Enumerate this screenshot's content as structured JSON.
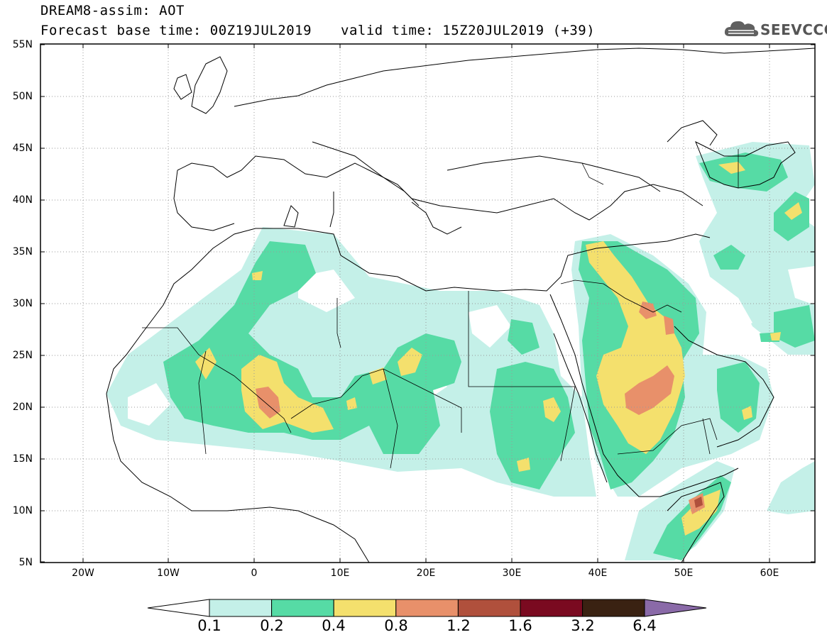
{
  "header": {
    "title": "DREAM8-assim: AOT",
    "base_time": "Forecast base time: 00Z19JUL2019",
    "valid_time": "valid time: 15Z20JUL2019 (+39)"
  },
  "logo": {
    "text": "SEEVCCC",
    "icon": "cloud-icon"
  },
  "map": {
    "lat_labels": [
      "55N",
      "50N",
      "45N",
      "40N",
      "35N",
      "30N",
      "25N",
      "20N",
      "15N",
      "10N",
      "5N"
    ],
    "lon_labels": [
      "20W",
      "10W",
      "0",
      "10E",
      "20E",
      "30E",
      "40E",
      "50E",
      "60E"
    ],
    "lon_range": [
      -25,
      65
    ],
    "lat_range": [
      5,
      55
    ]
  },
  "colorbar": {
    "labels": [
      "0.1",
      "0.2",
      "0.4",
      "0.8",
      "1.2",
      "1.6",
      "3.2",
      "6.4"
    ],
    "colors": [
      "#c4f0e8",
      "#56dba5",
      "#f4e06d",
      "#e8906a",
      "#b0503c",
      "#7a0a20",
      "#3a2212",
      "#8a6aa8"
    ]
  }
}
